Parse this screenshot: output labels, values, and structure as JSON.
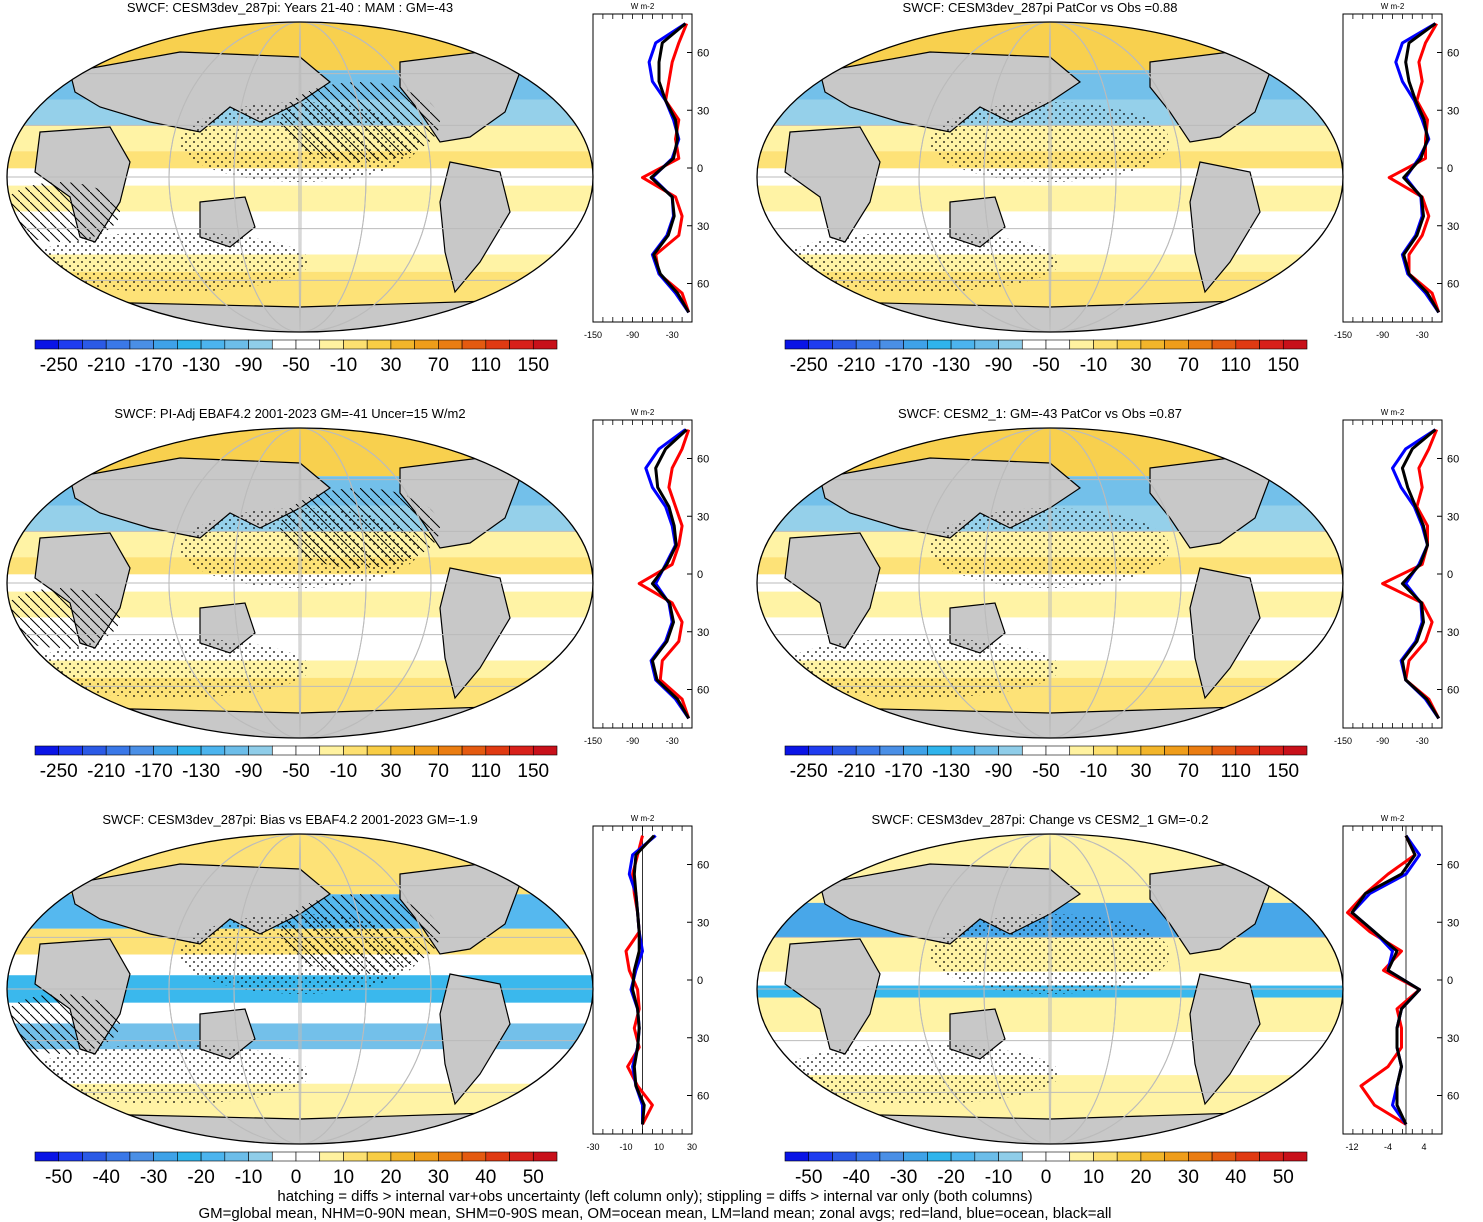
{
  "palettes": {
    "wide": [
      "#0a14e6",
      "#1f3cf0",
      "#2b5ae6",
      "#3a78e8",
      "#4a8fe6",
      "#3ea2e8",
      "#2fb4ec",
      "#4cb4ee",
      "#6cbde9",
      "#8fcde9",
      "#ffffff",
      "#ffffff",
      "#fff2a0",
      "#fde070",
      "#f8cd45",
      "#f2b52a",
      "#ef9d1a",
      "#ea7d12",
      "#e45a10",
      "#e03a12",
      "#d8201a",
      "#c8101a"
    ],
    "narrow": [
      "#0a14e6",
      "#1f3cf0",
      "#2b5ae6",
      "#3a78e8",
      "#4a8fe6",
      "#3ea2e8",
      "#2fb4ec",
      "#4cb4ee",
      "#6cbde9",
      "#8fcde9",
      "#ffffff",
      "#ffffff",
      "#fff2a0",
      "#fde070",
      "#f8cd45",
      "#f2b52a",
      "#ef9d1a",
      "#ea7d12",
      "#e45a10",
      "#e03a12",
      "#d8201a",
      "#c8101a"
    ],
    "land": "#c8c8c8",
    "line_colors": {
      "land": "#ff0000",
      "ocean": "#0000ff",
      "all": "#000000"
    }
  },
  "chart_data": [
    {
      "type": "heatmap",
      "title": "SWCF: CESM3dev_287pi: Years 21-40 : MAM : GM=-43",
      "colorbar_labels": [
        "-250",
        "-210",
        "-170",
        "-130",
        "-90",
        "-50",
        "-10",
        "30",
        "70",
        "110",
        "150"
      ],
      "palette": "wide",
      "fill": "mean",
      "zonal": {
        "unit_label": "W m-2",
        "x_ticks": [
          "-150",
          "-90",
          "-30"
        ],
        "xlim": [
          -150,
          0
        ],
        "y_ticks": [
          "60N",
          "30N",
          "0",
          "30S",
          "60S"
        ],
        "lat": [
          75,
          65,
          55,
          45,
          35,
          25,
          15,
          5,
          -5,
          -15,
          -25,
          -35,
          -45,
          -55,
          -65,
          -75
        ],
        "series": [
          {
            "name": "land",
            "values": [
              -8,
              -20,
              -30,
              -35,
              -40,
              -20,
              -25,
              -20,
              -75,
              -25,
              -15,
              -20,
              -55,
              -50,
              -15,
              -5
            ]
          },
          {
            "name": "ocean",
            "values": [
              -10,
              -55,
              -65,
              -60,
              -40,
              -28,
              -20,
              -30,
              -60,
              -30,
              -28,
              -38,
              -60,
              -50,
              -25,
              -5
            ]
          },
          {
            "name": "all",
            "values": [
              -10,
              -45,
              -50,
              -50,
              -40,
              -25,
              -22,
              -28,
              -62,
              -30,
              -27,
              -36,
              -58,
              -48,
              -22,
              -5
            ]
          }
        ]
      }
    },
    {
      "type": "heatmap",
      "title": "SWCF: CESM3dev_287pi PatCor vs Obs =0.88",
      "colorbar_labels": [
        "-250",
        "-210",
        "-170",
        "-130",
        "-90",
        "-50",
        "-10",
        "30",
        "70",
        "110",
        "150"
      ],
      "palette": "wide",
      "fill": "mean",
      "zonal": {
        "unit_label": "W m-2",
        "x_ticks": [
          "-150",
          "-90",
          "-30"
        ],
        "xlim": [
          -150,
          0
        ],
        "y_ticks": [
          "60N",
          "30N",
          "0",
          "30S",
          "60S"
        ],
        "lat": [
          75,
          65,
          55,
          45,
          35,
          25,
          15,
          5,
          -5,
          -15,
          -25,
          -35,
          -45,
          -55,
          -65,
          -75
        ],
        "series": [
          {
            "name": "land",
            "values": [
              -8,
              -25,
              -35,
              -30,
              -38,
              -22,
              -25,
              -25,
              -80,
              -30,
              -20,
              -30,
              -50,
              -50,
              -15,
              -5
            ]
          },
          {
            "name": "ocean",
            "values": [
              -10,
              -60,
              -70,
              -60,
              -42,
              -30,
              -20,
              -35,
              -55,
              -32,
              -30,
              -40,
              -60,
              -52,
              -25,
              -5
            ]
          },
          {
            "name": "all",
            "values": [
              -10,
              -50,
              -55,
              -50,
              -40,
              -27,
              -22,
              -32,
              -58,
              -31,
              -28,
              -38,
              -58,
              -50,
              -22,
              -5
            ]
          }
        ]
      }
    },
    {
      "type": "heatmap",
      "title": "SWCF: PI-Adj EBAF4.2 2001-2023 GM=-41 Uncer=15 W/m2",
      "colorbar_labels": [
        "-250",
        "-210",
        "-170",
        "-130",
        "-90",
        "-50",
        "-10",
        "30",
        "70",
        "110",
        "150"
      ],
      "palette": "wide",
      "fill": "mean",
      "zonal": {
        "unit_label": "W m-2",
        "x_ticks": [
          "-150",
          "-90",
          "-30"
        ],
        "xlim": [
          -150,
          0
        ],
        "y_ticks": [
          "60N",
          "30N",
          "0",
          "30S",
          "60S"
        ],
        "lat": [
          75,
          65,
          55,
          45,
          35,
          25,
          15,
          5,
          -5,
          -15,
          -25,
          -35,
          -45,
          -55,
          -65,
          -75
        ],
        "series": [
          {
            "name": "land",
            "values": [
              -5,
              -15,
              -30,
              -35,
              -25,
              -15,
              -20,
              -30,
              -80,
              -30,
              -15,
              -20,
              -45,
              -48,
              -15,
              -5
            ]
          },
          {
            "name": "ocean",
            "values": [
              -10,
              -50,
              -70,
              -60,
              -40,
              -30,
              -25,
              -40,
              -55,
              -35,
              -30,
              -40,
              -62,
              -55,
              -25,
              -5
            ]
          },
          {
            "name": "all",
            "values": [
              -8,
              -40,
              -55,
              -52,
              -35,
              -27,
              -24,
              -38,
              -60,
              -34,
              -28,
              -38,
              -60,
              -53,
              -22,
              -5
            ]
          }
        ]
      }
    },
    {
      "type": "heatmap",
      "title": "SWCF: CESM2_1: GM=-43 PatCor vs Obs =0.87",
      "colorbar_labels": [
        "-250",
        "-210",
        "-170",
        "-130",
        "-90",
        "-50",
        "-10",
        "30",
        "70",
        "110",
        "150"
      ],
      "palette": "wide",
      "fill": "mean",
      "zonal": {
        "unit_label": "W m-2",
        "x_ticks": [
          "-150",
          "-90",
          "-30"
        ],
        "xlim": [
          -150,
          0
        ],
        "y_ticks": [
          "60N",
          "30N",
          "0",
          "30S",
          "60S"
        ],
        "lat": [
          75,
          65,
          55,
          45,
          35,
          25,
          15,
          5,
          -5,
          -15,
          -25,
          -35,
          -45,
          -55,
          -65,
          -75
        ],
        "series": [
          {
            "name": "land",
            "values": [
              -8,
              -20,
              -35,
              -30,
              -38,
              -22,
              -22,
              -30,
              -90,
              -30,
              -15,
              -25,
              -50,
              -55,
              -20,
              -5
            ]
          },
          {
            "name": "ocean",
            "values": [
              -10,
              -55,
              -75,
              -62,
              -42,
              -30,
              -22,
              -35,
              -55,
              -32,
              -30,
              -40,
              -62,
              -55,
              -25,
              -5
            ]
          },
          {
            "name": "all",
            "values": [
              -10,
              -45,
              -60,
              -52,
              -40,
              -28,
              -22,
              -33,
              -60,
              -31,
              -28,
              -38,
              -60,
              -55,
              -23,
              -5
            ]
          }
        ]
      }
    },
    {
      "type": "heatmap",
      "title": "SWCF: CESM3dev_287pi: Bias vs EBAF4.2 2001-2023 GM=-1.9",
      "colorbar_labels": [
        "-50",
        "-40",
        "-30",
        "-20",
        "-10",
        "0",
        "10",
        "20",
        "30",
        "40",
        "50"
      ],
      "palette": "narrow",
      "fill": "bias",
      "zonal": {
        "unit_label": "W m-2",
        "x_ticks": [
          "-30",
          "-10",
          "10",
          "30"
        ],
        "xlim": [
          -30,
          30
        ],
        "y_ticks": [
          "60N",
          "30N",
          "0",
          "30S",
          "60S"
        ],
        "lat": [
          75,
          65,
          55,
          45,
          35,
          25,
          15,
          5,
          -5,
          -15,
          -25,
          -35,
          -45,
          -55,
          -65,
          -75
        ],
        "series": [
          {
            "name": "land",
            "values": [
              0,
              -3,
              -6,
              -5,
              -3,
              -2,
              -10,
              -8,
              -3,
              -2,
              -5,
              -2,
              -9,
              -3,
              6,
              0
            ]
          },
          {
            "name": "ocean",
            "values": [
              8,
              -6,
              -8,
              -4,
              -3,
              -2,
              0,
              -4,
              -7,
              -3,
              -2,
              -3,
              -6,
              -4,
              0,
              0
            ]
          },
          {
            "name": "all",
            "values": [
              7,
              -4,
              -5,
              -4,
              -3,
              -2,
              -2,
              -5,
              -6,
              -3,
              -2,
              -3,
              -5,
              -4,
              1,
              0
            ]
          }
        ]
      }
    },
    {
      "type": "heatmap",
      "title": "SWCF: CESM3dev_287pi: Change vs CESM2_1 GM=-0.2",
      "colorbar_labels": [
        "-50",
        "-40",
        "-30",
        "-20",
        "-10",
        "0",
        "10",
        "20",
        "30",
        "40",
        "50"
      ],
      "palette": "narrow",
      "fill": "change",
      "zonal": {
        "unit_label": "W m-2",
        "x_ticks": [
          "-12",
          "-4",
          "4"
        ],
        "xlim": [
          -14,
          8
        ],
        "y_ticks": [
          "60N",
          "30N",
          "0",
          "30S",
          "60S"
        ],
        "lat": [
          75,
          65,
          55,
          45,
          35,
          25,
          15,
          5,
          -5,
          -15,
          -25,
          -35,
          -45,
          -55,
          -65,
          -75
        ],
        "series": [
          {
            "name": "land",
            "values": [
              0,
              2,
              -4,
              -9,
              -13,
              -8,
              -1,
              -5,
              3,
              -2,
              -1,
              -1,
              -4,
              -10,
              -7,
              0
            ]
          },
          {
            "name": "ocean",
            "values": [
              0,
              3,
              0,
              -8,
              -12,
              -7,
              -3,
              -4,
              3,
              -1,
              -2,
              -2,
              -1,
              -2,
              -3,
              0
            ]
          },
          {
            "name": "all",
            "values": [
              0,
              2,
              -1,
              -9,
              -12,
              -7,
              -2,
              -4,
              3,
              -1,
              -2,
              -2,
              -1,
              -2,
              -2,
              0
            ]
          }
        ]
      }
    }
  ],
  "footer": {
    "line1": "hatching = diffs > internal var+obs uncertainty (left column only); stippling = diffs > internal var only (both columns)",
    "line2": "GM=global mean, NHM=0-90N mean, SHM=0-90S mean, OM=ocean mean, LM=land mean; zonal avgs; red=land, blue=ocean, black=all"
  }
}
